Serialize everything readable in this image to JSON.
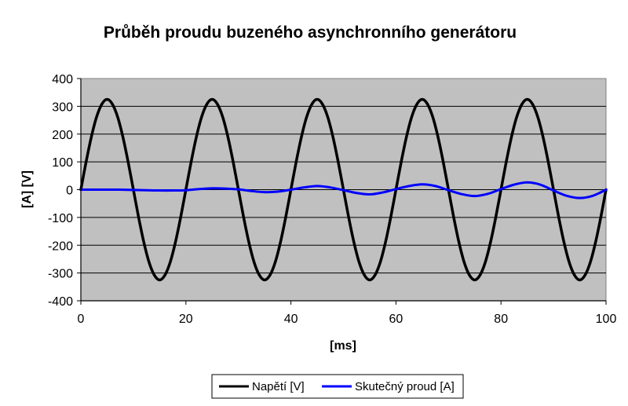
{
  "chart_data": {
    "type": "line",
    "title": "Průběh  proudu buzeného asynchronního generátoru",
    "xlabel": "[ms]",
    "ylabel": "[A] [V]",
    "xlim": [
      0,
      100
    ],
    "ylim": [
      -400,
      400
    ],
    "xticks": [
      "0",
      "20",
      "40",
      "60",
      "80",
      "100"
    ],
    "yticks": [
      "400",
      "300",
      "200",
      "100",
      "0",
      "-100",
      "-200",
      "-300",
      "-400"
    ],
    "grid": "horizontal",
    "legend_position": "bottom",
    "plot_background": "#c0c0c0",
    "series": [
      {
        "name": "Napětí [V]",
        "color": "#000000",
        "x": [
          0,
          1,
          2,
          3,
          4,
          5,
          6,
          7,
          8,
          9,
          10,
          11,
          12,
          13,
          14,
          15,
          16,
          17,
          18,
          19,
          20,
          21,
          22,
          23,
          24,
          25,
          26,
          27,
          28,
          29,
          30,
          31,
          32,
          33,
          34,
          35,
          36,
          37,
          38,
          39,
          40,
          41,
          42,
          43,
          44,
          45,
          46,
          47,
          48,
          49,
          50,
          51,
          52,
          53,
          54,
          55,
          56,
          57,
          58,
          59,
          60,
          61,
          62,
          63,
          64,
          65,
          66,
          67,
          68,
          69,
          70,
          71,
          72,
          73,
          74,
          75,
          76,
          77,
          78,
          79,
          80,
          81,
          82,
          83,
          84,
          85,
          86,
          87,
          88,
          89,
          90,
          91,
          92,
          93,
          94,
          95,
          96,
          97,
          98,
          99,
          100
        ],
        "values": [
          0,
          100,
          190,
          262,
          308,
          325,
          308,
          262,
          190,
          100,
          0,
          -100,
          -190,
          -262,
          -308,
          -325,
          -308,
          -262,
          -190,
          -100,
          0,
          100,
          190,
          262,
          308,
          325,
          308,
          262,
          190,
          100,
          0,
          -100,
          -190,
          -262,
          -308,
          -325,
          -308,
          -262,
          -190,
          -100,
          0,
          100,
          190,
          262,
          308,
          325,
          308,
          262,
          190,
          100,
          0,
          -100,
          -190,
          -262,
          -308,
          -325,
          -308,
          -262,
          -190,
          -100,
          0,
          100,
          190,
          262,
          308,
          325,
          308,
          262,
          190,
          100,
          0,
          -100,
          -190,
          -262,
          -308,
          -325,
          -308,
          -262,
          -190,
          -100,
          0,
          100,
          190,
          262,
          308,
          325,
          308,
          262,
          190,
          100,
          0,
          -100,
          -190,
          -262,
          -308,
          -325,
          -308,
          -262,
          -190,
          -100,
          0
        ]
      },
      {
        "name": "Skutečný proud [A]",
        "color": "#0000ff",
        "x": [
          0,
          2.5,
          5,
          7.5,
          10,
          12.5,
          15,
          17.5,
          20,
          22.5,
          25,
          27.5,
          30,
          32.5,
          35,
          37.5,
          40,
          42.5,
          45,
          47.5,
          50,
          52.5,
          55,
          57.5,
          60,
          62.5,
          65,
          67.5,
          70,
          72.5,
          75,
          77.5,
          80,
          82.5,
          85,
          87.5,
          90,
          92.5,
          95,
          97.5,
          100
        ],
        "values": [
          0,
          0,
          0,
          0,
          -1,
          -2,
          -3,
          -3,
          -2,
          2,
          5,
          4,
          1,
          -5,
          -9,
          -7,
          0,
          8,
          13,
          8,
          -2,
          -12,
          -17,
          -10,
          2,
          13,
          19,
          13,
          -2,
          -16,
          -23,
          -15,
          2,
          18,
          26,
          18,
          -3,
          -22,
          -30,
          -22,
          0
        ]
      }
    ]
  }
}
